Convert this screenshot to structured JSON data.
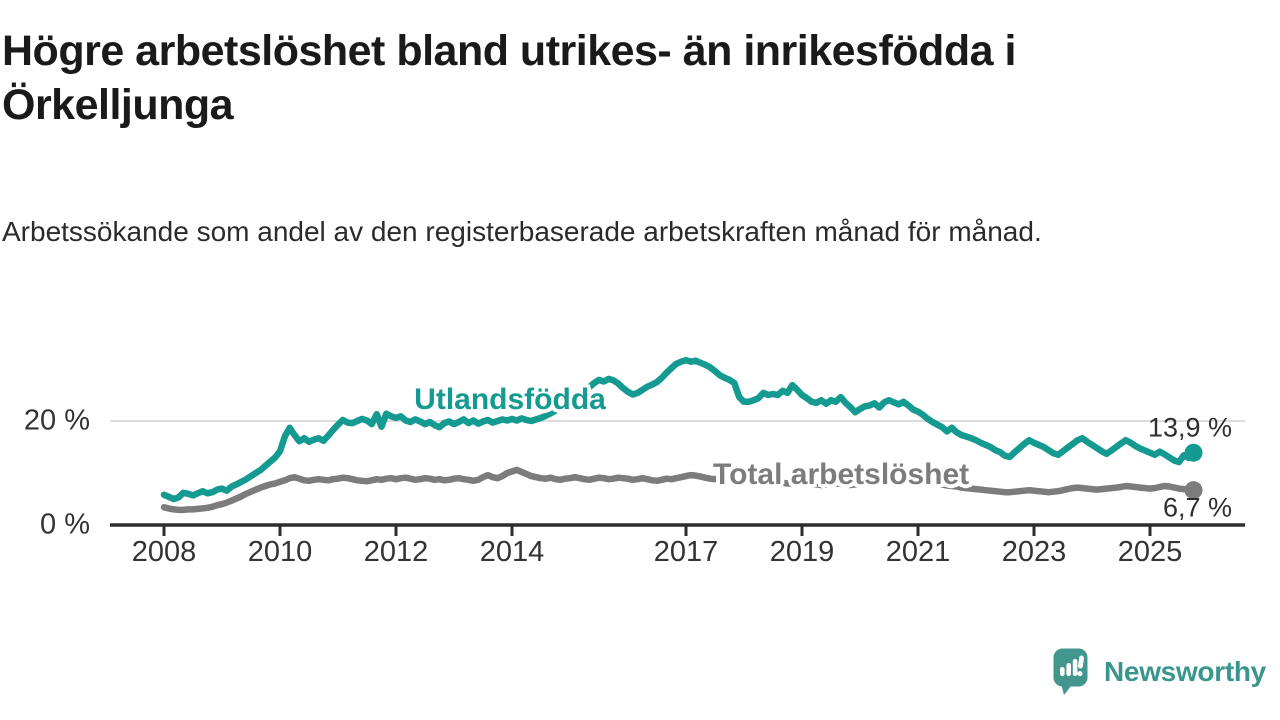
{
  "header": {
    "title": "Högre arbetslöshet bland utrikes- än inrikesfödda i Örkelljunga",
    "subtitle": "Arbetssökande som andel av den registerbaserade arbetskraften månad för månad."
  },
  "footer": {
    "brand": "Newsworthy"
  },
  "chart_data": {
    "type": "line",
    "unit": "%",
    "frequency": "monthly",
    "x_start": "2008-01",
    "x_end": "2025-10",
    "ylim": [
      0,
      35
    ],
    "grid": "single horizontal gridline at 20 %",
    "legend_position": "inline labels on lines",
    "y_tick_labels": [
      "20 %",
      "0 %"
    ],
    "y_tick_values": [
      20,
      0
    ],
    "x_ticks": [
      {
        "label": "2008",
        "year": 2008
      },
      {
        "label": "2010",
        "year": 2010
      },
      {
        "label": "2012",
        "year": 2012
      },
      {
        "label": "2014",
        "year": 2014
      },
      {
        "label": "2017",
        "year": 2017
      },
      {
        "label": "2019",
        "year": 2019
      },
      {
        "label": "2021",
        "year": 2021
      },
      {
        "label": "2023",
        "year": 2023
      },
      {
        "label": "2025",
        "year": 2025
      }
    ],
    "series": [
      {
        "name": "Utlandsfödda",
        "color": "#149a90",
        "end_label": "13,9 %",
        "end_value": 13.9,
        "values": [
          5.8,
          5.4,
          5.0,
          5.3,
          6.2,
          6.0,
          5.7,
          6.1,
          6.5,
          6.1,
          6.3,
          6.8,
          7.0,
          6.6,
          7.4,
          7.8,
          8.3,
          8.8,
          9.4,
          10.0,
          10.6,
          11.4,
          12.2,
          13.0,
          14.2,
          17.0,
          18.7,
          17.3,
          16.1,
          16.7,
          16.0,
          16.4,
          16.7,
          16.2,
          17.2,
          18.3,
          19.3,
          20.2,
          19.7,
          19.6,
          20.0,
          20.4,
          20.1,
          19.4,
          21.3,
          18.9,
          21.4,
          20.9,
          20.6,
          20.9,
          20.1,
          19.8,
          20.3,
          19.9,
          19.4,
          19.8,
          19.2,
          18.8,
          19.6,
          19.9,
          19.4,
          19.8,
          20.3,
          19.6,
          20.1,
          19.5,
          19.9,
          20.2,
          19.7,
          20.0,
          20.3,
          20.1,
          20.4,
          20.1,
          20.5,
          20.2,
          20.0,
          20.3,
          20.6,
          21.0,
          21.5,
          22.0,
          22.6,
          23.2,
          23.8,
          24.5,
          25.2,
          25.9,
          26.5,
          27.3,
          27.9,
          27.6,
          28.1,
          27.8,
          27.2,
          26.3,
          25.6,
          25.1,
          25.4,
          26.0,
          26.6,
          27.0,
          27.5,
          28.3,
          29.3,
          30.2,
          31.0,
          31.4,
          31.7,
          31.4,
          31.6,
          31.2,
          30.8,
          30.3,
          29.6,
          28.8,
          28.3,
          27.9,
          27.3,
          24.6,
          23.7,
          23.7,
          24.0,
          24.4,
          25.4,
          25.0,
          25.2,
          25.0,
          25.8,
          25.4,
          26.9,
          26.0,
          25.0,
          24.4,
          23.7,
          23.5,
          24.0,
          23.3,
          24.0,
          23.7,
          24.6,
          23.5,
          22.7,
          21.7,
          22.3,
          22.8,
          23.0,
          23.4,
          22.6,
          23.6,
          24.0,
          23.6,
          23.2,
          23.7,
          23.0,
          22.2,
          21.8,
          21.2,
          20.4,
          19.8,
          19.3,
          18.8,
          18.0,
          18.7,
          17.8,
          17.3,
          17.0,
          16.7,
          16.3,
          15.8,
          15.4,
          15.0,
          14.4,
          14.0,
          13.3,
          13.1,
          14.0,
          14.8,
          15.6,
          16.3,
          15.8,
          15.4,
          15.0,
          14.4,
          13.8,
          13.5,
          14.2,
          14.9,
          15.6,
          16.3,
          16.7,
          16.0,
          15.4,
          14.8,
          14.2,
          13.7,
          14.3,
          15.0,
          15.7,
          16.3,
          15.8,
          15.2,
          14.7,
          14.3,
          13.9,
          13.5,
          14.1,
          13.6,
          13.0,
          12.4,
          12.1,
          13.4,
          12.9,
          13.9
        ]
      },
      {
        "name": "Total arbetslöshet",
        "color": "#7c7c7c",
        "end_label": "6,7 %",
        "end_value": 6.7,
        "values": [
          3.4,
          3.2,
          3.0,
          2.9,
          2.9,
          3.0,
          3.0,
          3.1,
          3.2,
          3.3,
          3.5,
          3.8,
          4.0,
          4.3,
          4.7,
          5.1,
          5.5,
          6.0,
          6.4,
          6.8,
          7.2,
          7.5,
          7.8,
          8.0,
          8.3,
          8.6,
          9.0,
          9.2,
          8.9,
          8.6,
          8.5,
          8.7,
          8.8,
          8.7,
          8.6,
          8.8,
          8.9,
          9.1,
          9.0,
          8.8,
          8.6,
          8.5,
          8.4,
          8.6,
          8.8,
          8.7,
          8.9,
          9.0,
          8.8,
          9.0,
          9.1,
          8.9,
          8.7,
          8.8,
          9.0,
          8.9,
          8.7,
          8.8,
          8.6,
          8.7,
          8.9,
          9.0,
          8.8,
          8.7,
          8.5,
          8.7,
          9.2,
          9.6,
          9.2,
          9.0,
          9.4,
          10.0,
          10.3,
          10.6,
          10.2,
          9.8,
          9.4,
          9.2,
          9.0,
          8.9,
          9.1,
          8.8,
          8.7,
          8.9,
          9.0,
          9.2,
          9.0,
          8.8,
          8.7,
          8.9,
          9.1,
          9.0,
          8.8,
          8.9,
          9.1,
          9.0,
          8.9,
          8.7,
          8.8,
          9.0,
          8.8,
          8.6,
          8.5,
          8.7,
          8.9,
          8.8,
          9.0,
          9.2,
          9.4,
          9.6,
          9.5,
          9.3,
          9.1,
          8.9,
          8.8,
          9.0,
          9.2,
          9.1,
          8.9,
          8.8,
          8.7,
          8.5,
          8.3,
          8.2,
          8.1,
          8.0,
          8.1,
          8.2,
          8.1,
          8.0,
          7.9,
          8.0,
          8.1,
          8.0,
          7.9,
          7.8,
          7.7,
          7.8,
          7.9,
          8.0,
          7.9,
          7.8,
          7.7,
          7.8,
          8.0,
          8.1,
          8.4,
          8.9,
          9.2,
          9.4,
          9.5,
          9.4,
          9.2,
          9.0,
          8.9,
          8.8,
          8.7,
          8.6,
          8.4,
          8.2,
          8.0,
          7.8,
          7.6,
          7.5,
          7.4,
          7.2,
          7.1,
          7.0,
          6.9,
          6.8,
          6.7,
          6.6,
          6.5,
          6.4,
          6.3,
          6.3,
          6.4,
          6.5,
          6.6,
          6.7,
          6.6,
          6.5,
          6.4,
          6.3,
          6.4,
          6.5,
          6.7,
          6.9,
          7.1,
          7.2,
          7.1,
          7.0,
          6.9,
          6.8,
          6.9,
          7.0,
          7.1,
          7.2,
          7.3,
          7.5,
          7.4,
          7.3,
          7.2,
          7.1,
          7.0,
          7.1,
          7.3,
          7.5,
          7.4,
          7.2,
          7.0,
          6.9,
          6.8,
          6.7
        ]
      }
    ]
  }
}
